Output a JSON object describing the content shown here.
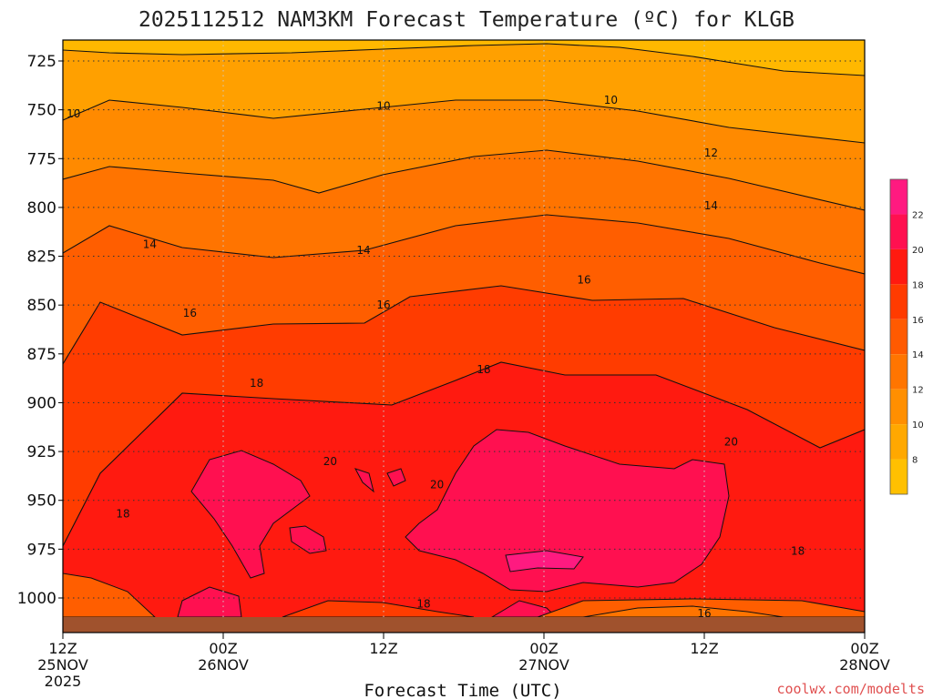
{
  "chart_data": {
    "type": "heatmap",
    "title": "2025112512 NAM3KM Forecast Temperature (ºC) for KLGB",
    "xlabel": "Forecast Time (UTC)",
    "ylabel": "",
    "credit": "coolwx.com/modelts",
    "y_axis": {
      "ticks": [
        725,
        750,
        775,
        800,
        825,
        850,
        875,
        900,
        925,
        950,
        975,
        1000
      ],
      "range_hpa": [
        1015,
        713
      ],
      "scale": "pressure (hPa), inverted"
    },
    "x_axis": {
      "ticks": [
        {
          "hour": "12Z",
          "date": "25NOV",
          "year": "2025"
        },
        {
          "hour": "00Z",
          "date": "26NOV",
          "year": ""
        },
        {
          "hour": "12Z",
          "date": "",
          "year": ""
        },
        {
          "hour": "00Z",
          "date": "27NOV",
          "year": ""
        },
        {
          "hour": "12Z",
          "date": "",
          "year": ""
        },
        {
          "hour": "00Z",
          "date": "28NOV",
          "year": ""
        }
      ],
      "range": [
        "2025-11-25 12Z",
        "2025-11-28 00Z"
      ]
    },
    "colorbar": {
      "levels": [
        8,
        10,
        12,
        14,
        16,
        18,
        20,
        22
      ],
      "colors": [
        "#ffc000",
        "#ffa800",
        "#ff8f00",
        "#ff7500",
        "#ff5a00",
        "#ff3b00",
        "#ff1a10",
        "#ff1050",
        "#ff1a80"
      ],
      "position": "right"
    },
    "contour_labels": [
      {
        "value": "10",
        "forecast_hour": 0.8,
        "hpa": 752
      },
      {
        "value": "10",
        "forecast_hour": 24.0,
        "hpa": 748
      },
      {
        "value": "10",
        "forecast_hour": 41.0,
        "hpa": 745
      },
      {
        "value": "12",
        "forecast_hour": 48.5,
        "hpa": 772
      },
      {
        "value": "14",
        "forecast_hour": 6.5,
        "hpa": 819
      },
      {
        "value": "14",
        "forecast_hour": 22.5,
        "hpa": 822
      },
      {
        "value": "14",
        "forecast_hour": 48.5,
        "hpa": 799
      },
      {
        "value": "16",
        "forecast_hour": 9.5,
        "hpa": 854
      },
      {
        "value": "16",
        "forecast_hour": 24.0,
        "hpa": 850
      },
      {
        "value": "16",
        "forecast_hour": 39.0,
        "hpa": 837
      },
      {
        "value": "16",
        "forecast_hour": 48.0,
        "hpa": 1008
      },
      {
        "value": "18",
        "forecast_hour": 14.5,
        "hpa": 890
      },
      {
        "value": "18",
        "forecast_hour": 31.5,
        "hpa": 883
      },
      {
        "value": "18",
        "forecast_hour": 4.5,
        "hpa": 957
      },
      {
        "value": "18",
        "forecast_hour": 55.0,
        "hpa": 976
      },
      {
        "value": "18",
        "forecast_hour": 27.0,
        "hpa": 1003
      },
      {
        "value": "20",
        "forecast_hour": 20.0,
        "hpa": 930
      },
      {
        "value": "20",
        "forecast_hour": 28.0,
        "hpa": 942
      },
      {
        "value": "20",
        "forecast_hour": 50.0,
        "hpa": 920
      }
    ],
    "grid": true,
    "grid_style": "dotted"
  }
}
